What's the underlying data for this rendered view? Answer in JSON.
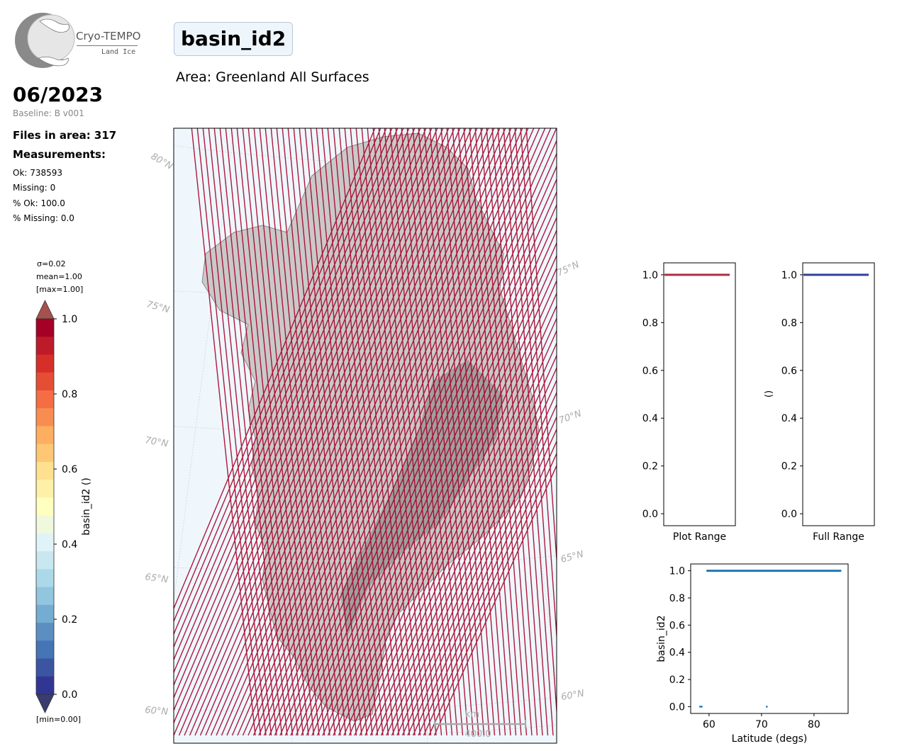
{
  "logo": {
    "title": "Cryo-TEMPO",
    "subtitle": "Land Ice"
  },
  "header": {
    "date": "06/2023",
    "baseline": "Baseline: B v001",
    "files_in_area": "Files in area: 317",
    "measurements_heading": "Measurements:",
    "ok": "Ok: 738593",
    "missing": "Missing: 0",
    "pct_ok": "% Ok: 100.0",
    "pct_missing": "% Missing: 0.0",
    "variable": "basin_id2",
    "area": "Area: Greenland All Surfaces"
  },
  "colorbar": {
    "sigma": "σ=0.02",
    "mean": "mean=1.00",
    "max": "[max=1.00]",
    "min": "[min=0.00]",
    "label": "basin_id2 ()",
    "ticks": [
      "1.0",
      "0.8",
      "0.6",
      "0.4",
      "0.2",
      "0.0"
    ],
    "colors": [
      "#a50026",
      "#bd1a2a",
      "#d62f27",
      "#e54d34",
      "#f46d43",
      "#f88d52",
      "#fdae61",
      "#fdc776",
      "#fee090",
      "#fff0a8",
      "#ffffbf",
      "#f0f9dc",
      "#e0f3f8",
      "#c9e7f1",
      "#abd9e9",
      "#92c5de",
      "#74add1",
      "#5b8fc2",
      "#4575b4",
      "#3b55a2",
      "#313695"
    ]
  },
  "map": {
    "lat_labels": [
      "80°N",
      "75°N",
      "75°N",
      "70°N",
      "70°N",
      "65°N",
      "65°N",
      "60°N",
      "60°N"
    ],
    "scalebar_unit": "km",
    "scalebar_value": "400.0",
    "track_color": "#a50026"
  },
  "chart_data": [
    {
      "type": "line",
      "title": "",
      "xlabel": "Plot Range",
      "ylabel": "",
      "ylim": [
        -0.05,
        1.05
      ],
      "yticks": [
        "0.0",
        "0.2",
        "0.4",
        "0.6",
        "0.8",
        "1.0"
      ],
      "series": [
        {
          "values": [
            1.0,
            1.0
          ],
          "color": "#b22b45"
        }
      ]
    },
    {
      "type": "line",
      "title": "",
      "xlabel": "Full Range",
      "ylabel": "()",
      "ylim": [
        -0.05,
        1.05
      ],
      "yticks": [
        "0.0",
        "0.2",
        "0.4",
        "0.6",
        "0.8",
        "1.0"
      ],
      "series": [
        {
          "values": [
            1.0,
            1.0
          ],
          "color": "#2f3f9a"
        }
      ]
    },
    {
      "type": "scatter",
      "title": "",
      "xlabel": "Latitude (degs)",
      "ylabel": "basin_id2",
      "xlim": [
        56.5,
        86.5
      ],
      "ylim": [
        -0.05,
        1.05
      ],
      "xticks": [
        "60",
        "70",
        "80"
      ],
      "yticks": [
        "0.0",
        "0.2",
        "0.4",
        "0.6",
        "0.8",
        "1.0"
      ],
      "series": [
        {
          "name": "",
          "x": [
            59.5,
            85.2
          ],
          "y": [
            1.0,
            1.0
          ],
          "style": "line",
          "color": "#1f77b4"
        },
        {
          "name": "",
          "x": [
            58.3,
            58.6,
            71.0
          ],
          "y": [
            0.0,
            0.0,
            0.0
          ],
          "style": "points",
          "color": "#1f77b4"
        }
      ]
    }
  ]
}
